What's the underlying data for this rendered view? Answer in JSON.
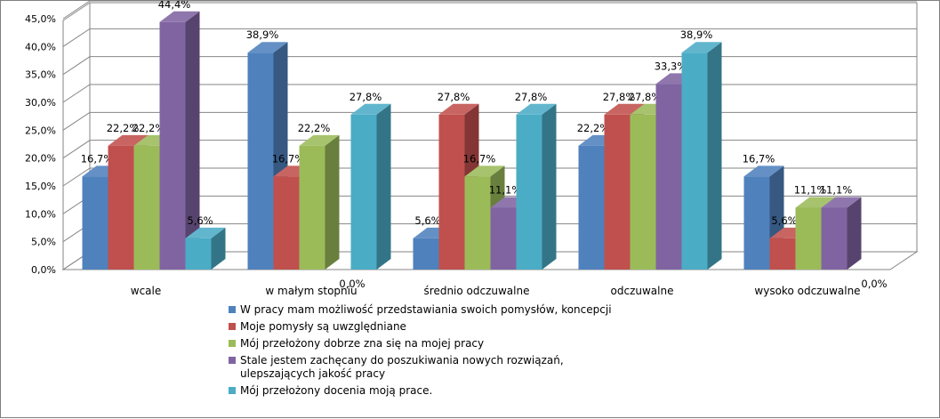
{
  "chart_data": {
    "type": "bar",
    "style": "3d-clustered-column",
    "categories": [
      "wcale",
      "w małym stopniu",
      "średnio odczuwalne",
      "odczuwalne",
      "wysoko odczuwalne"
    ],
    "series": [
      {
        "name": "W pracy mam możliwość przedstawiania swoich pomysłów, koncepcji",
        "color": "#4f81bd",
        "values": [
          16.7,
          38.9,
          5.6,
          22.2,
          16.7
        ],
        "labels": [
          "16,7%",
          "38,9%",
          "5,6%",
          "22,2%",
          "16,7%"
        ]
      },
      {
        "name": "Moje pomysły są uwzględniane",
        "color": "#c0504d",
        "values": [
          22.2,
          16.7,
          27.8,
          27.8,
          5.6
        ],
        "labels": [
          "22,2%",
          "16,7%",
          "27,8%",
          "27,8%",
          "5,6%"
        ]
      },
      {
        "name": "Mój przełożony dobrze zna się na mojej pracy",
        "color": "#9bbb59",
        "values": [
          22.2,
          22.2,
          16.7,
          27.8,
          11.1
        ],
        "labels": [
          "22,2%",
          "22,2%",
          "16,7%",
          "27,8%",
          "11,1%"
        ]
      },
      {
        "name_lines": [
          "Stale jestem zachęcany do poszukiwania nowych rozwiązań,",
          "ulepszających jakość pracy"
        ],
        "color": "#8064a2",
        "values": [
          44.4,
          0.0,
          11.1,
          33.3,
          11.1
        ],
        "labels": [
          "44,4%",
          "0,0%",
          "11,1%",
          "33,3%",
          "11,1%"
        ]
      },
      {
        "name": "Mój przełożony docenia moją prace.",
        "color": "#4bacc6",
        "values": [
          5.6,
          27.8,
          27.8,
          38.9,
          0.0
        ],
        "labels": [
          "5,6%",
          "27,8%",
          "27,8%",
          "38,9%",
          "0,0%"
        ]
      }
    ],
    "yaxis": {
      "ticks": [
        "0,0%",
        "5,0%",
        "10,0%",
        "15,0%",
        "20,0%",
        "25,0%",
        "30,0%",
        "35,0%",
        "40,0%",
        "45,0%"
      ],
      "min": 0,
      "max": 45,
      "step": 5
    },
    "grid": true,
    "legend_position": "bottom"
  }
}
